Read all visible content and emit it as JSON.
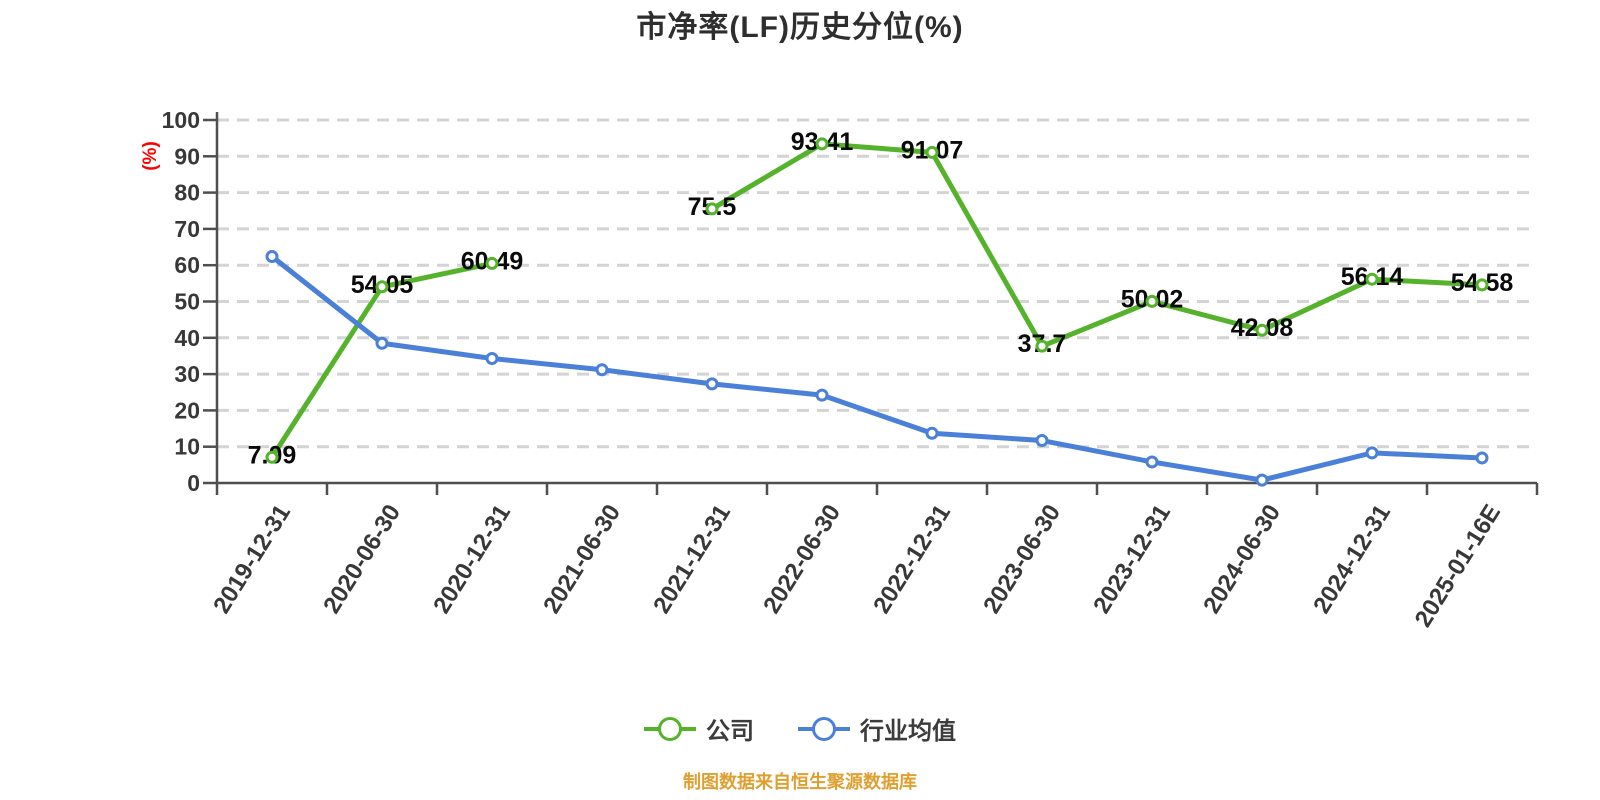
{
  "title": "市净率(LF)历史分位(%)",
  "y_axis_unit": "(%)",
  "footer_note": "制图数据来自恒生聚源数据库",
  "colors": {
    "company": "#55b32b",
    "industry": "#4b80d9",
    "grid": "#d4d4d4",
    "axis": "#4f4f4f",
    "tick_label": "#383838",
    "data_label": "#0a0a0a",
    "title": "#2e2e2e",
    "unit_label": "#ff0000",
    "footer": "#dfa032",
    "marker_fill": "#ffffff"
  },
  "chart_data": {
    "type": "line",
    "title": "市净率(LF)历史分位(%)",
    "ylabel": "(%)",
    "ylim": [
      0,
      100
    ],
    "ytick_step": 10,
    "grid": "horizontal-dashed",
    "legend_position": "bottom",
    "categories": [
      "2019-12-31",
      "2020-06-30",
      "2020-12-31",
      "2021-06-30",
      "2021-12-31",
      "2022-06-30",
      "2022-12-31",
      "2023-06-30",
      "2023-12-31",
      "2024-06-30",
      "2024-12-31",
      "2025-01-16E"
    ],
    "series": [
      {
        "name": "公司",
        "color": "#55b32b",
        "labeled": true,
        "values": [
          7.09,
          54.05,
          60.49,
          null,
          75.5,
          93.41,
          91.07,
          37.7,
          50.02,
          42.08,
          56.14,
          54.58
        ]
      },
      {
        "name": "行业均值",
        "color": "#4b80d9",
        "labeled": false,
        "values": [
          62.4,
          38.5,
          34.3,
          31.2,
          27.3,
          24.2,
          13.7,
          11.7,
          5.8,
          0.8,
          8.3,
          6.9
        ]
      }
    ]
  }
}
